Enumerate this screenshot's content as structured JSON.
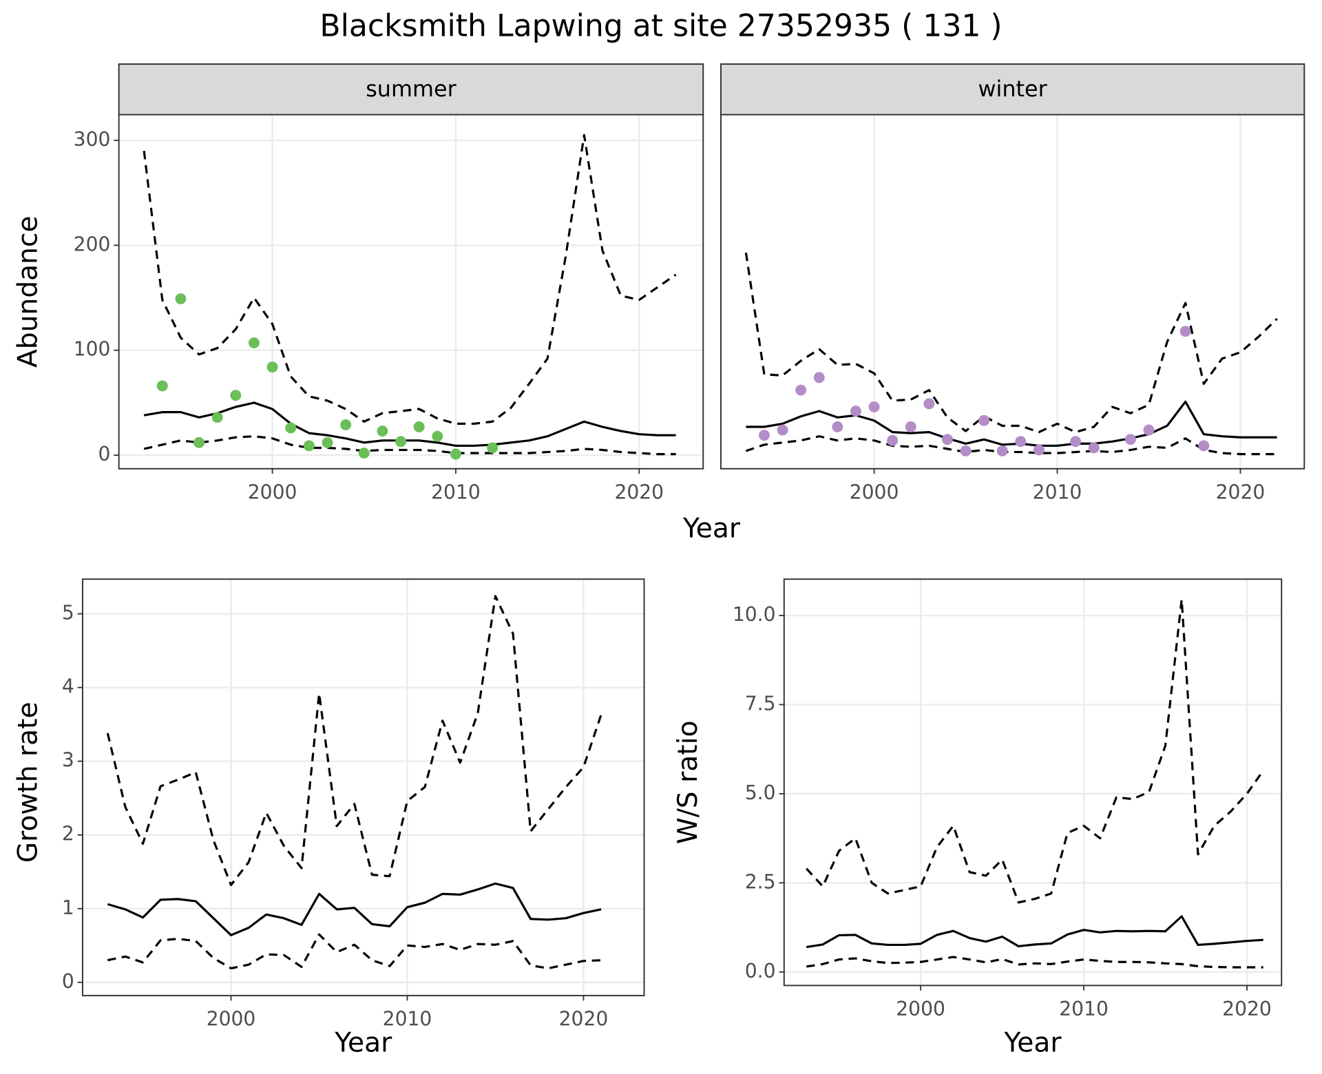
{
  "title": "Blacksmith Lapwing at site 27352935 ( 131 )",
  "chart_data": [
    {
      "type": "line",
      "facet": "summer",
      "ylabel": "Abundance",
      "xlabel": "Year",
      "x": [
        1993,
        1994,
        1995,
        1996,
        1997,
        1998,
        1999,
        2000,
        2001,
        2002,
        2003,
        2004,
        2005,
        2006,
        2007,
        2008,
        2009,
        2010,
        2011,
        2012,
        2013,
        2014,
        2015,
        2016,
        2017,
        2018,
        2019,
        2020,
        2021,
        2022
      ],
      "xlim": [
        1991.63,
        2023.49
      ],
      "xticks": [
        2000,
        2010,
        2020
      ],
      "ylim": [
        -12.9,
        324.5
      ],
      "yticks": [
        0,
        100,
        200,
        300
      ],
      "grid": true,
      "series": [
        {
          "color": "#000000",
          "dashed": false,
          "values": [
            38,
            41,
            41,
            36,
            40,
            46,
            50,
            44,
            30,
            21,
            19,
            16,
            12,
            14,
            14,
            14,
            12,
            9,
            9,
            10,
            12,
            14,
            18,
            25,
            32,
            27,
            23,
            20,
            19,
            19
          ]
        },
        {
          "color": "#000000",
          "dashed": true,
          "values": [
            290,
            148,
            112,
            96,
            102,
            120,
            150,
            125,
            75,
            56,
            52,
            44,
            32,
            40,
            42,
            44,
            35,
            30,
            30,
            32,
            45,
            68,
            92,
            190,
            305,
            195,
            152,
            148,
            160,
            172
          ]
        },
        {
          "color": "#000000",
          "dashed": true,
          "values": [
            6,
            10,
            14,
            12,
            14,
            17,
            18,
            16,
            10,
            7,
            7,
            6,
            4,
            5,
            5,
            5,
            4,
            2,
            2,
            2,
            2,
            2,
            3,
            4,
            6,
            5,
            3,
            2,
            1,
            1
          ]
        },
        {
          "color": "#6bbf59",
          "points": true,
          "values": [
            null,
            66,
            149,
            12,
            36,
            57,
            107,
            84,
            26,
            9,
            12,
            29,
            2,
            23,
            13,
            27,
            18,
            1,
            null,
            7,
            null,
            null,
            null,
            null,
            null,
            null,
            null,
            null,
            null,
            null
          ]
        }
      ]
    },
    {
      "type": "line",
      "facet": "winter",
      "x": [
        1993,
        1994,
        1995,
        1996,
        1997,
        1998,
        1999,
        2000,
        2001,
        2002,
        2003,
        2004,
        2005,
        2006,
        2007,
        2008,
        2009,
        2010,
        2011,
        2012,
        2013,
        2014,
        2015,
        2016,
        2017,
        2018,
        2019,
        2020,
        2021,
        2022
      ],
      "xlim": [
        1991.63,
        2023.49
      ],
      "xticks": [
        2000,
        2010,
        2020
      ],
      "ylim": [
        -12.9,
        324.5
      ],
      "grid": true,
      "series": [
        {
          "color": "#000000",
          "dashed": false,
          "values": [
            27,
            27,
            30,
            37,
            42,
            36,
            38,
            33,
            22,
            21,
            22,
            16,
            11,
            15,
            10,
            11,
            9,
            9,
            11,
            11,
            13,
            16,
            20,
            28,
            51,
            20,
            18,
            17,
            17,
            17
          ]
        },
        {
          "color": "#000000",
          "dashed": true,
          "values": [
            193,
            77,
            76,
            90,
            101,
            86,
            87,
            78,
            52,
            53,
            62,
            36,
            23,
            37,
            28,
            28,
            22,
            30,
            22,
            27,
            46,
            40,
            48,
            108,
            145,
            68,
            92,
            98,
            113,
            130
          ]
        },
        {
          "color": "#000000",
          "dashed": true,
          "values": [
            4,
            10,
            12,
            14,
            18,
            14,
            16,
            14,
            9,
            8,
            9,
            6,
            3,
            5,
            3,
            3,
            2,
            2,
            3,
            4,
            3,
            5,
            8,
            7,
            16,
            5,
            2,
            1,
            1,
            1
          ]
        },
        {
          "color": "#b48cc8",
          "points": true,
          "values": [
            null,
            19,
            24,
            62,
            74,
            27,
            42,
            46,
            14,
            27,
            49,
            15,
            4,
            33,
            4,
            13,
            5,
            null,
            13,
            7,
            null,
            15,
            24,
            null,
            118,
            9,
            null,
            null,
            null,
            null
          ]
        }
      ]
    },
    {
      "type": "line",
      "ylabel": "Growth rate",
      "xlabel": "Year",
      "x": [
        1993,
        1994,
        1995,
        1996,
        1997,
        1998,
        1999,
        2000,
        2001,
        2002,
        2003,
        2004,
        2005,
        2006,
        2007,
        2008,
        2009,
        2010,
        2011,
        2012,
        2013,
        2014,
        2015,
        2016,
        2017,
        2018,
        2019,
        2020,
        2021
      ],
      "xlim": [
        1991.58,
        2023.44
      ],
      "xticks": [
        2000,
        2010,
        2020
      ],
      "ylim": [
        -0.18,
        5.47
      ],
      "yticks": [
        0,
        1,
        2,
        3,
        4,
        5
      ],
      "grid": true,
      "series": [
        {
          "color": "#000000",
          "dashed": false,
          "values": [
            1.06,
            0.99,
            0.88,
            1.12,
            1.13,
            1.1,
            0.87,
            0.64,
            0.74,
            0.92,
            0.87,
            0.78,
            1.2,
            0.99,
            1.01,
            0.79,
            0.76,
            1.02,
            1.08,
            1.2,
            1.19,
            1.26,
            1.34,
            1.28,
            0.86,
            0.85,
            0.87,
            0.94,
            0.99
          ]
        },
        {
          "color": "#000000",
          "dashed": true,
          "values": [
            3.38,
            2.38,
            1.88,
            2.66,
            2.75,
            2.85,
            1.93,
            1.32,
            1.63,
            2.3,
            1.85,
            1.55,
            3.92,
            2.12,
            2.42,
            1.46,
            1.44,
            2.46,
            2.65,
            3.55,
            2.98,
            3.65,
            5.24,
            4.73,
            2.05,
            2.35,
            2.65,
            2.92,
            3.63
          ]
        },
        {
          "color": "#000000",
          "dashed": true,
          "values": [
            0.3,
            0.35,
            0.27,
            0.57,
            0.59,
            0.56,
            0.33,
            0.19,
            0.24,
            0.38,
            0.37,
            0.21,
            0.65,
            0.41,
            0.51,
            0.3,
            0.22,
            0.5,
            0.48,
            0.52,
            0.44,
            0.52,
            0.51,
            0.56,
            0.23,
            0.19,
            0.24,
            0.29,
            0.3
          ]
        }
      ]
    },
    {
      "type": "line",
      "ylabel": "W/S ratio",
      "xlabel": "Year",
      "x": [
        1993,
        1994,
        1995,
        1996,
        1997,
        1998,
        1999,
        2000,
        2001,
        2002,
        2003,
        2004,
        2005,
        2006,
        2007,
        2008,
        2009,
        2010,
        2011,
        2012,
        2013,
        2014,
        2015,
        2016,
        2017,
        2018,
        2019,
        2020,
        2021
      ],
      "xlim": [
        1991.63,
        2022.12
      ],
      "xticks": [
        2000,
        2010,
        2020
      ],
      "ylim": [
        -0.38,
        11.02
      ],
      "yticks": [
        {
          "value": 0,
          "label": "0.0"
        },
        {
          "value": 2.5,
          "label": "2.5"
        },
        {
          "value": 5,
          "label": "5.0"
        },
        {
          "value": 7.5,
          "label": "7.5"
        },
        {
          "value": 10,
          "label": "10.0"
        }
      ],
      "grid": true,
      "series": [
        {
          "color": "#000000",
          "dashed": false,
          "values": [
            0.7,
            0.77,
            1.03,
            1.04,
            0.8,
            0.76,
            0.76,
            0.79,
            1.04,
            1.15,
            0.95,
            0.85,
            0.99,
            0.72,
            0.77,
            0.8,
            1.05,
            1.18,
            1.11,
            1.15,
            1.14,
            1.15,
            1.14,
            1.56,
            0.76,
            0.79,
            0.83,
            0.87,
            0.9
          ]
        },
        {
          "color": "#000000",
          "dashed": true,
          "values": [
            2.9,
            2.4,
            3.4,
            3.75,
            2.5,
            2.2,
            2.3,
            2.4,
            3.5,
            4.1,
            2.8,
            2.7,
            3.15,
            1.95,
            2.05,
            2.2,
            3.9,
            4.1,
            3.75,
            4.9,
            4.85,
            5.05,
            6.35,
            10.45,
            3.3,
            4.1,
            4.5,
            5.0,
            5.65
          ]
        },
        {
          "color": "#000000",
          "dashed": true,
          "values": [
            0.15,
            0.22,
            0.35,
            0.38,
            0.3,
            0.25,
            0.26,
            0.28,
            0.35,
            0.42,
            0.35,
            0.27,
            0.36,
            0.21,
            0.24,
            0.22,
            0.29,
            0.35,
            0.31,
            0.28,
            0.28,
            0.27,
            0.24,
            0.22,
            0.16,
            0.14,
            0.13,
            0.13,
            0.13
          ]
        }
      ]
    }
  ]
}
